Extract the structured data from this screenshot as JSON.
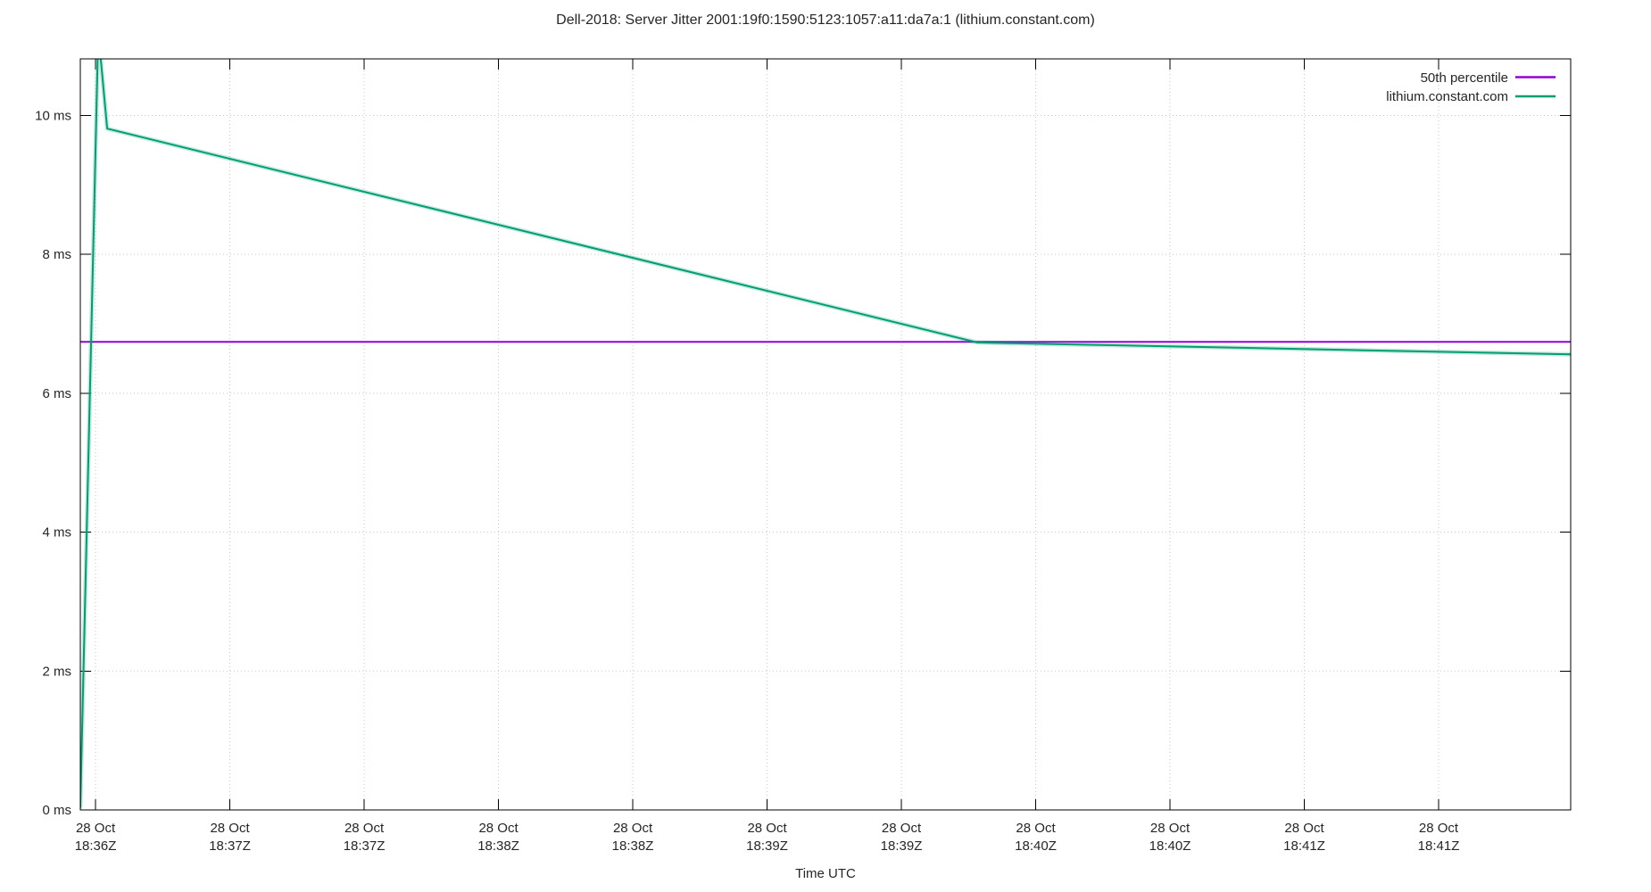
{
  "chart_data": {
    "type": "line",
    "title": "Dell-2018: Server Jitter 2001:19f0:1590:5123:1057:a11:da7a:1 (lithium.constant.com)",
    "xlabel": "Time UTC",
    "ylabel": "",
    "grid": "dotted",
    "legend_position": "top-right-inside",
    "x_axis": {
      "unit": "seconds after first tick (28 Oct 18:36:00Z), ticks every 30 s",
      "xlim_seconds": [
        -3.4,
        329.5
      ],
      "ticks": [
        {
          "t": 0,
          "date": "28 Oct",
          "time": "18:36Z"
        },
        {
          "t": 30,
          "date": "28 Oct",
          "time": "18:37Z"
        },
        {
          "t": 60,
          "date": "28 Oct",
          "time": "18:37Z"
        },
        {
          "t": 90,
          "date": "28 Oct",
          "time": "18:38Z"
        },
        {
          "t": 120,
          "date": "28 Oct",
          "time": "18:38Z"
        },
        {
          "t": 150,
          "date": "28 Oct",
          "time": "18:39Z"
        },
        {
          "t": 180,
          "date": "28 Oct",
          "time": "18:39Z"
        },
        {
          "t": 210,
          "date": "28 Oct",
          "time": "18:40Z"
        },
        {
          "t": 240,
          "date": "28 Oct",
          "time": "18:40Z"
        },
        {
          "t": 270,
          "date": "28 Oct",
          "time": "18:41Z"
        },
        {
          "t": 300,
          "date": "28 Oct",
          "time": "18:41Z"
        }
      ]
    },
    "y_axis": {
      "unit": "ms",
      "ylim": [
        0,
        10.815
      ],
      "ticks": [
        {
          "v": 0,
          "label": "0 ms"
        },
        {
          "v": 2,
          "label": "2 ms"
        },
        {
          "v": 4,
          "label": "4 ms"
        },
        {
          "v": 6,
          "label": "6 ms"
        },
        {
          "v": 8,
          "label": "8 ms"
        },
        {
          "v": 10,
          "label": "10 ms"
        }
      ]
    },
    "series": [
      {
        "name": "50th percentile",
        "color": "#9400d3",
        "points": [
          [
            -3.4,
            6.74
          ],
          [
            329.5,
            6.74
          ]
        ]
      },
      {
        "name": "lithium.constant.com",
        "color": "#009e73",
        "points": [
          [
            -3.4,
            0.04
          ],
          [
            0.6,
            11.2
          ],
          [
            2.6,
            9.81
          ],
          [
            197,
            6.73
          ],
          [
            329.5,
            6.56
          ]
        ]
      }
    ],
    "colors": {
      "border": "#000000",
      "grid": "#c8c8c8",
      "text": "#262626",
      "background": "#ffffff"
    }
  }
}
